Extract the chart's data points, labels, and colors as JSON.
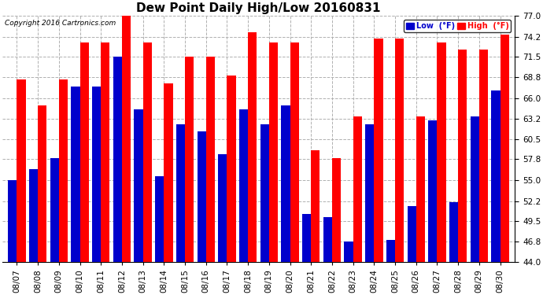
{
  "title": "Dew Point Daily High/Low 20160831",
  "copyright": "Copyright 2016 Cartronics.com",
  "dates": [
    "08/07",
    "08/08",
    "08/09",
    "08/10",
    "08/11",
    "08/12",
    "08/13",
    "08/14",
    "08/15",
    "08/16",
    "08/17",
    "08/18",
    "08/19",
    "08/20",
    "08/21",
    "08/22",
    "08/23",
    "08/24",
    "08/25",
    "08/26",
    "08/27",
    "08/28",
    "08/29",
    "08/30"
  ],
  "high": [
    68.5,
    65.0,
    68.5,
    73.5,
    73.5,
    77.0,
    73.5,
    68.0,
    71.5,
    71.5,
    69.0,
    74.8,
    73.5,
    73.5,
    59.0,
    58.0,
    63.5,
    74.0,
    74.0,
    63.5,
    73.5,
    72.5,
    72.5,
    74.5
  ],
  "low": [
    55.0,
    56.5,
    58.0,
    67.5,
    67.5,
    71.5,
    64.5,
    55.5,
    62.5,
    61.5,
    58.5,
    64.5,
    62.5,
    65.0,
    50.5,
    50.0,
    46.8,
    62.5,
    47.0,
    51.5,
    63.0,
    52.0,
    63.5,
    67.0
  ],
  "ymin": 44.0,
  "ymax": 77.0,
  "yticks": [
    44.0,
    46.8,
    49.5,
    52.2,
    55.0,
    57.8,
    60.5,
    63.2,
    66.0,
    68.8,
    71.5,
    74.2,
    77.0
  ],
  "bar_width": 0.42,
  "high_color": "#ff0000",
  "low_color": "#0000cc",
  "bg_color": "#ffffff",
  "grid_color": "#b0b0b0",
  "title_fontsize": 11,
  "tick_fontsize": 7.5,
  "legend_high_label": "High  (°F)",
  "legend_low_label": "Low  (°F)"
}
